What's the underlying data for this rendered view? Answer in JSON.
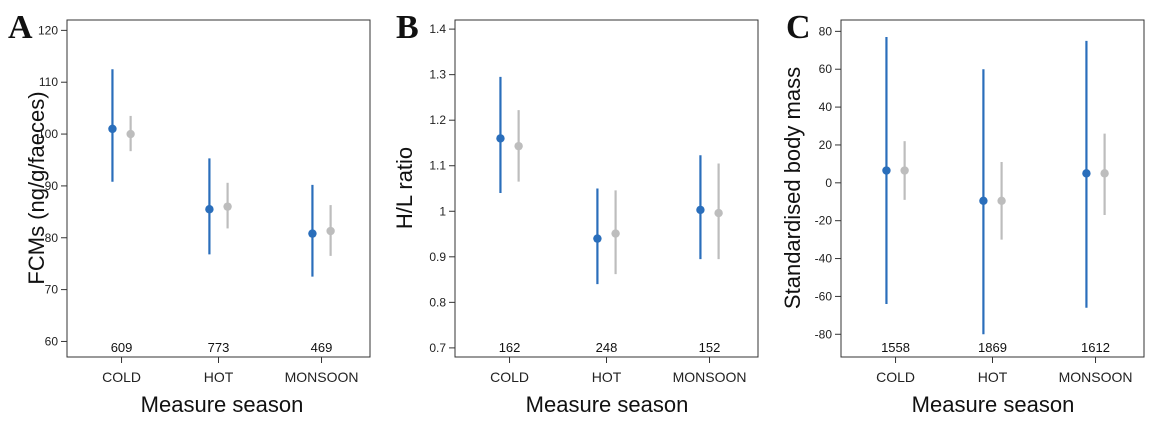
{
  "colors": {
    "primary": "#2a6ebb",
    "secondary": "#bdbdbd",
    "axis": "#333333"
  },
  "chart_data": [
    {
      "type": "scatter",
      "panel_label": "A",
      "xlabel": "Measure season",
      "ylabel": "FCMs (ng/g/faeces)",
      "categories": [
        "COLD",
        "HOT",
        "MONSOON"
      ],
      "ylim": [
        57,
        122
      ],
      "yticks": [
        60,
        70,
        80,
        90,
        100,
        110,
        120
      ],
      "ytick_labels": [
        "60",
        "70",
        "80",
        "90",
        "100",
        "110",
        "120"
      ],
      "sample_sizes": [
        "609",
        "773",
        "469"
      ],
      "series": [
        {
          "color": "#2a6ebb",
          "values": [
            101,
            85.5,
            80.8
          ],
          "lower": [
            90.8,
            76.8,
            72.5
          ],
          "upper": [
            112.5,
            95.3,
            90.2
          ]
        },
        {
          "color": "#bdbdbd",
          "values": [
            100,
            86,
            81.3
          ],
          "lower": [
            96.7,
            81.8,
            76.5
          ],
          "upper": [
            103.5,
            90.6,
            86.3
          ]
        }
      ]
    },
    {
      "type": "scatter",
      "panel_label": "B",
      "xlabel": "Measure season",
      "ylabel": "H/L ratio",
      "categories": [
        "COLD",
        "HOT",
        "MONSOON"
      ],
      "ylim": [
        0.68,
        1.42
      ],
      "yticks": [
        0.7,
        0.8,
        0.9,
        1.0,
        1.1,
        1.2,
        1.3,
        1.4
      ],
      "ytick_labels": [
        "0.7",
        "0.8",
        "0.9",
        "1",
        "1.1",
        "1.2",
        "1.3",
        "1.4"
      ],
      "sample_sizes": [
        "162",
        "248",
        "152"
      ],
      "series": [
        {
          "color": "#2a6ebb",
          "values": [
            1.16,
            0.94,
            1.003
          ],
          "lower": [
            1.04,
            0.84,
            0.895
          ],
          "upper": [
            1.295,
            1.05,
            1.123
          ]
        },
        {
          "color": "#bdbdbd",
          "values": [
            1.143,
            0.951,
            0.996
          ],
          "lower": [
            1.065,
            0.862,
            0.895
          ],
          "upper": [
            1.222,
            1.046,
            1.105
          ]
        }
      ]
    },
    {
      "type": "scatter",
      "panel_label": "C",
      "xlabel": "Measure season",
      "ylabel": "Standardised body mass",
      "categories": [
        "COLD",
        "HOT",
        "MONSOON"
      ],
      "ylim": [
        -92,
        86
      ],
      "yticks": [
        -80,
        -60,
        -40,
        -20,
        0,
        20,
        40,
        60,
        80
      ],
      "ytick_labels": [
        "-80",
        "-60",
        "-40",
        "-20",
        "0",
        "20",
        "40",
        "60",
        "80"
      ],
      "sample_sizes": [
        "1558",
        "1869",
        "1612"
      ],
      "series": [
        {
          "color": "#2a6ebb",
          "values": [
            6.5,
            -9.5,
            5
          ],
          "lower": [
            -64,
            -80,
            -66
          ],
          "upper": [
            77,
            60,
            75
          ]
        },
        {
          "color": "#bdbdbd",
          "values": [
            6.5,
            -9.5,
            5
          ],
          "lower": [
            -9,
            -30,
            -17
          ],
          "upper": [
            22,
            11,
            26
          ]
        }
      ]
    }
  ]
}
